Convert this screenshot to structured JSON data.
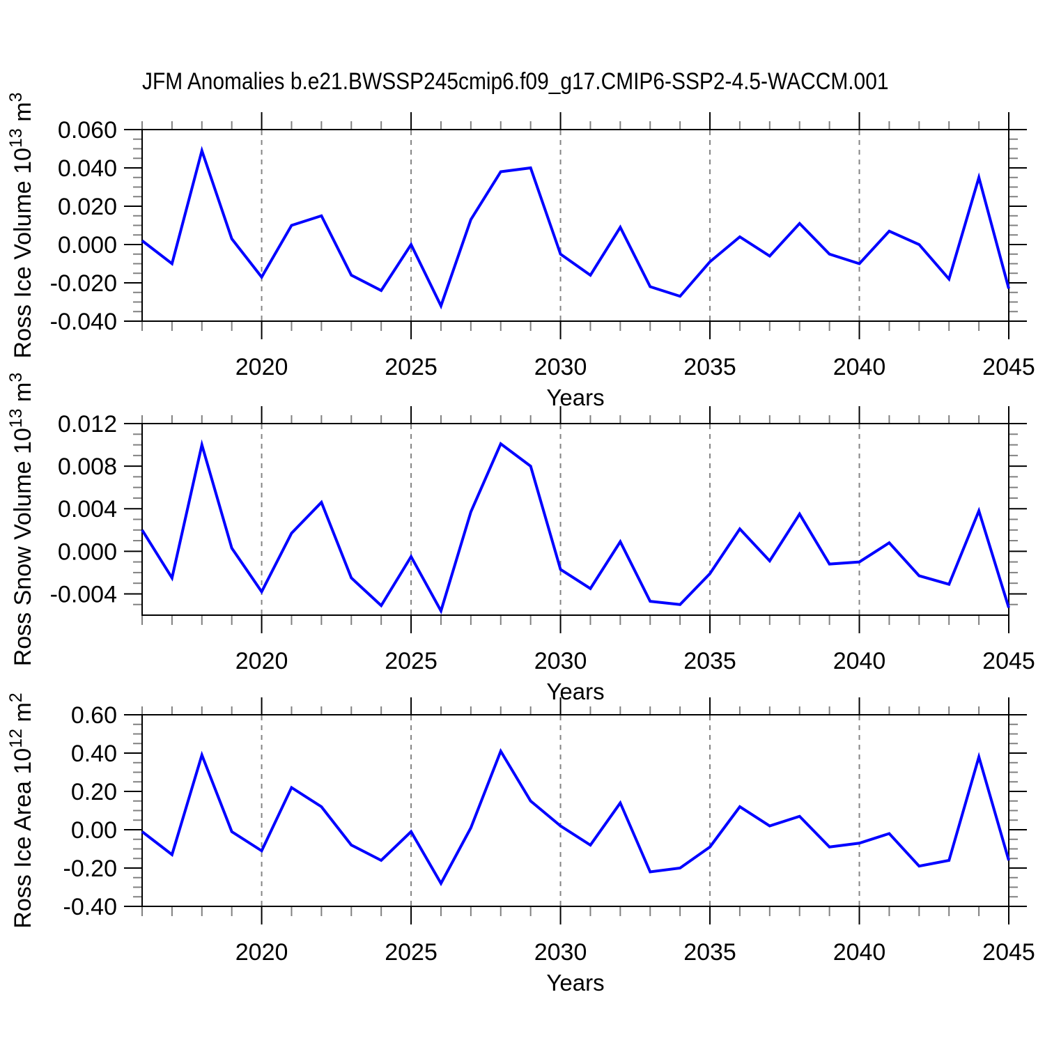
{
  "title": "JFM Anomalies b.e21.BWSSP245cmip6.f09_g17.CMIP6-SSP2-4.5-WACCM.001",
  "xlabel": "Years",
  "colors": {
    "background": "#ffffff",
    "line": "#0000ff",
    "frame": "#000000",
    "grid": "#848484",
    "major_tick": "#000000",
    "minor_tick": "#808080",
    "text": "#000000"
  },
  "x_axis": {
    "start": 2016,
    "end": 2045,
    "years": [
      2016,
      2017,
      2018,
      2019,
      2020,
      2021,
      2022,
      2023,
      2024,
      2025,
      2026,
      2027,
      2028,
      2029,
      2030,
      2031,
      2032,
      2033,
      2034,
      2035,
      2036,
      2037,
      2038,
      2039,
      2040,
      2041,
      2042,
      2043,
      2044,
      2045
    ],
    "labeled_ticks": [
      2020,
      2025,
      2030,
      2035,
      2040,
      2045
    ],
    "minor_step": 1,
    "gridline_years": [
      2020,
      2025,
      2030,
      2035,
      2040
    ]
  },
  "chart_data": [
    {
      "id": "ross-ice-volume",
      "type": "line",
      "ylabel": {
        "base": "Ross Ice Volume 10",
        "exp": "13",
        "unit": "m",
        "unit_exp": "3",
        "plain": "Ross Ice Volume 10^13 m^3"
      },
      "ylim": [
        -0.04,
        0.06
      ],
      "ytick_values": [
        0.06,
        0.04,
        0.02,
        0,
        -0.02,
        -0.04
      ],
      "ytick_labels": [
        "0.060",
        "0.040",
        "0.020",
        "0.000",
        "-0.020",
        "-0.040"
      ],
      "y_minor_step": 0.005,
      "values": [
        0.002,
        -0.01,
        0.049,
        0.003,
        -0.017,
        0.01,
        0.015,
        -0.016,
        -0.024,
        0.0,
        -0.032,
        0.013,
        0.038,
        0.04,
        -0.005,
        -0.016,
        0.009,
        -0.022,
        -0.027,
        -0.009,
        0.004,
        -0.006,
        0.011,
        -0.005,
        -0.01,
        0.007,
        0.0,
        -0.018,
        0.035,
        -0.023
      ]
    },
    {
      "id": "ross-snow-volume",
      "type": "line",
      "ylabel": {
        "base": "Ross Snow Volume 10",
        "exp": "13",
        "unit": "m",
        "unit_exp": "3",
        "plain": "Ross Snow Volume 10^13 m^3"
      },
      "ylim": [
        -0.006,
        0.012
      ],
      "ytick_values": [
        0.012,
        0.008,
        0.004,
        0,
        -0.004
      ],
      "ytick_labels": [
        "0.012",
        "0.008",
        "0.004",
        "0.000",
        "-0.004"
      ],
      "y_minor_step": 0.001,
      "values": [
        0.002,
        -0.0025,
        0.01,
        0.0003,
        -0.0038,
        0.0017,
        0.0046,
        -0.0025,
        -0.0051,
        -0.0005,
        -0.0056,
        0.0037,
        0.0101,
        0.008,
        -0.0017,
        -0.0035,
        0.0009,
        -0.0047,
        -0.005,
        -0.0021,
        0.0021,
        -0.0009,
        0.0035,
        -0.0012,
        -0.001,
        0.0008,
        -0.0023,
        -0.0031,
        0.0038,
        -0.0053
      ]
    },
    {
      "id": "ross-ice-area",
      "type": "line",
      "ylabel": {
        "base": "Ross Ice Area 10",
        "exp": "12",
        "unit": "m",
        "unit_exp": "2",
        "plain": "Ross Ice Area 10^12 m^2"
      },
      "ylim": [
        -0.4,
        0.6
      ],
      "ytick_values": [
        0.6,
        0.4,
        0.2,
        0,
        -0.2,
        -0.4
      ],
      "ytick_labels": [
        "0.60",
        "0.40",
        "0.20",
        "0.00",
        "-0.20",
        "-0.40"
      ],
      "y_minor_step": 0.05,
      "values": [
        -0.01,
        -0.13,
        0.39,
        -0.01,
        -0.11,
        0.22,
        0.12,
        -0.08,
        -0.16,
        -0.01,
        -0.28,
        0.01,
        0.41,
        0.15,
        0.02,
        -0.08,
        0.14,
        -0.22,
        -0.2,
        -0.09,
        0.12,
        0.02,
        0.07,
        -0.09,
        -0.07,
        -0.02,
        -0.19,
        -0.16,
        0.38,
        -0.16
      ]
    }
  ]
}
